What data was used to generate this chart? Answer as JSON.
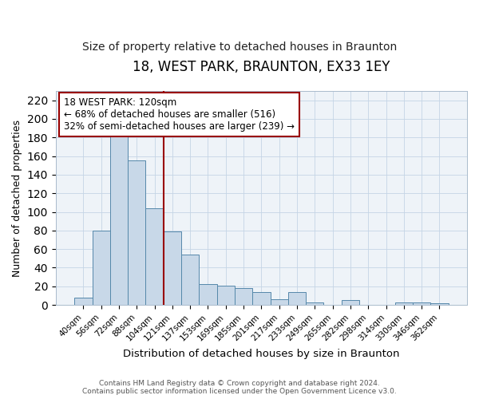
{
  "title": "18, WEST PARK, BRAUNTON, EX33 1EY",
  "subtitle": "Size of property relative to detached houses in Braunton",
  "xlabel": "Distribution of detached houses by size in Braunton",
  "ylabel": "Number of detached properties",
  "footer_line1": "Contains HM Land Registry data © Crown copyright and database right 2024.",
  "footer_line2": "Contains public sector information licensed under the Open Government Licence v3.0.",
  "bar_labels": [
    "40sqm",
    "56sqm",
    "72sqm",
    "88sqm",
    "104sqm",
    "121sqm",
    "137sqm",
    "153sqm",
    "169sqm",
    "185sqm",
    "201sqm",
    "217sqm",
    "233sqm",
    "249sqm",
    "265sqm",
    "282sqm",
    "298sqm",
    "314sqm",
    "330sqm",
    "346sqm",
    "362sqm"
  ],
  "bar_values": [
    8,
    80,
    181,
    155,
    104,
    79,
    54,
    22,
    21,
    18,
    14,
    6,
    14,
    3,
    0,
    5,
    0,
    0,
    3,
    3,
    2
  ],
  "bar_color": "#c8d8e8",
  "bar_edgecolor": "#5588aa",
  "ylim": [
    0,
    230
  ],
  "yticks": [
    0,
    20,
    40,
    60,
    80,
    100,
    120,
    140,
    160,
    180,
    200,
    220
  ],
  "vline_x": 4.5,
  "vline_color": "#990000",
  "annotation_text": "18 WEST PARK: 120sqm\n← 68% of detached houses are smaller (516)\n32% of semi-detached houses are larger (239) →",
  "annotation_box_color": "#ffffff",
  "annotation_box_edgecolor": "#990000",
  "annotation_fontsize": 8.5,
  "title_fontsize": 12,
  "subtitle_fontsize": 10,
  "bg_color": "#f0f4f8"
}
